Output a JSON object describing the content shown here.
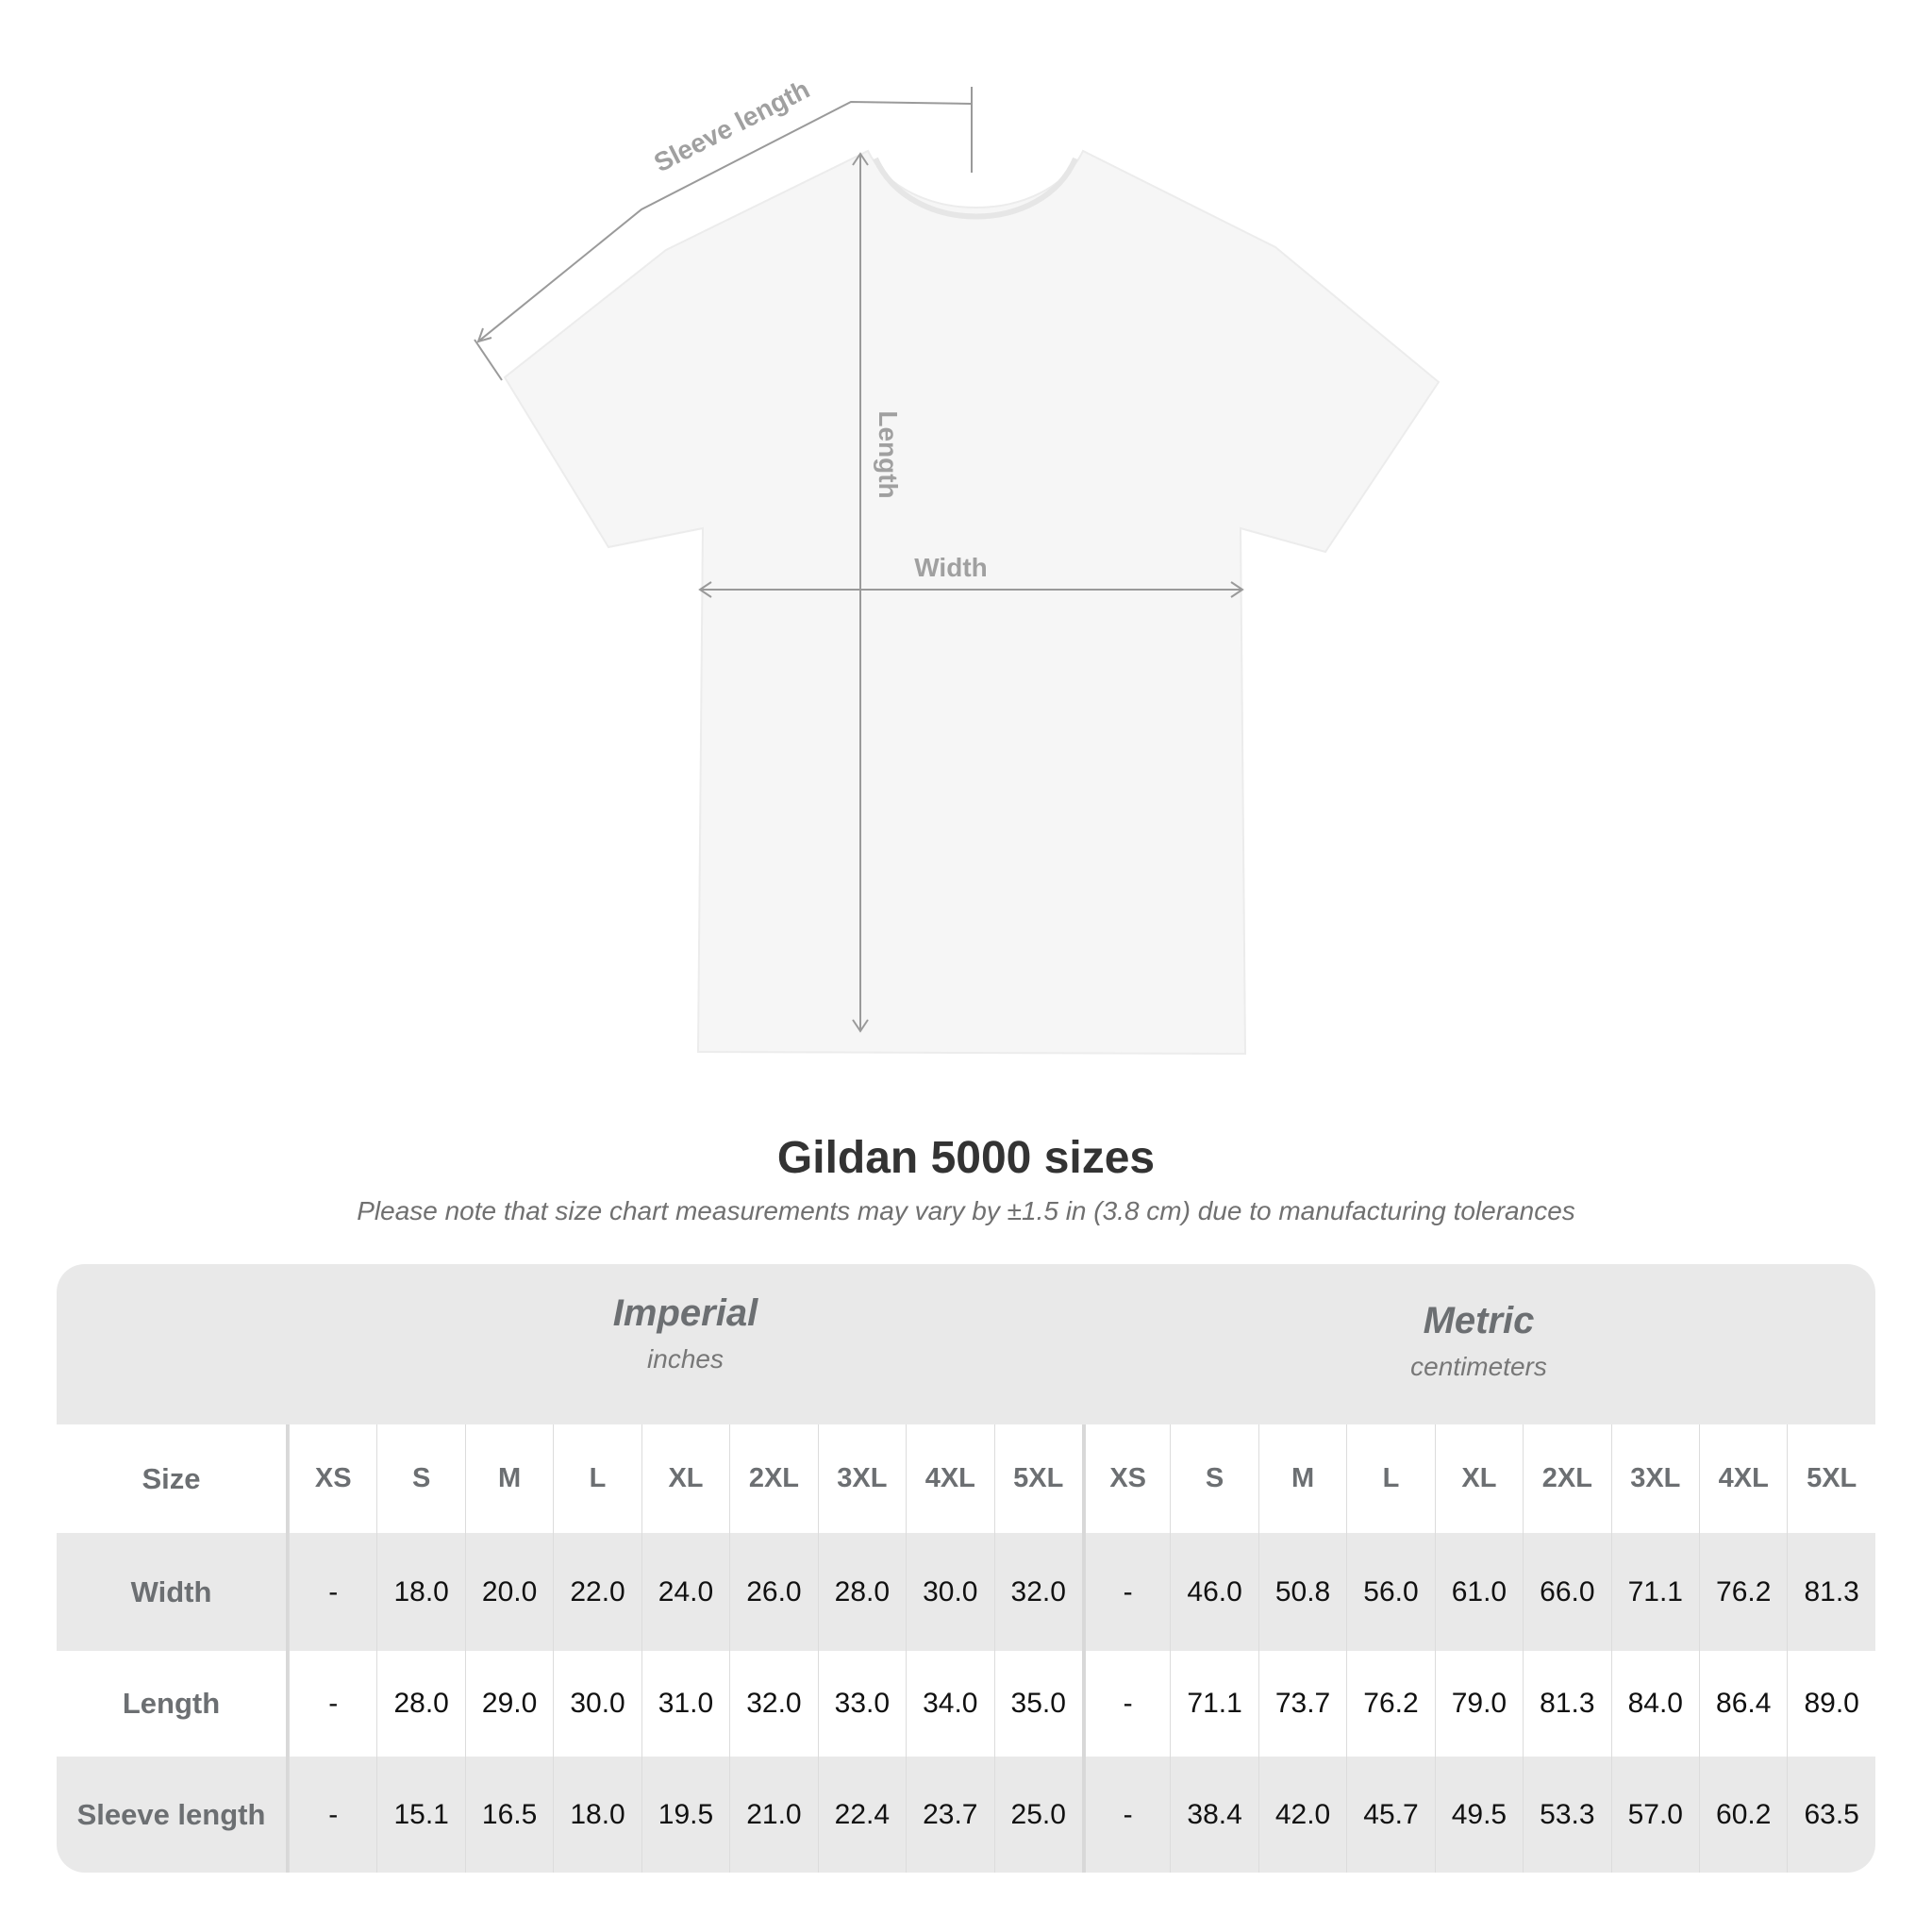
{
  "diagram": {
    "labels": {
      "sleeve": "Sleeve length",
      "length": "Length",
      "width": "Width"
    },
    "colors": {
      "shirt": "#f6f6f6",
      "lines": "#9a9a9a",
      "label": "#a0a0a0"
    }
  },
  "title": "Gildan 5000 sizes",
  "note": "Please note that size chart measurements may vary by ±1.5 in (3.8 cm) due to manufacturing tolerances",
  "table": {
    "imperial": {
      "name": "Imperial",
      "unit": "inches"
    },
    "metric": {
      "name": "Metric",
      "unit": "centimeters"
    },
    "size_label": "Size",
    "sizes": [
      "XS",
      "S",
      "M",
      "L",
      "XL",
      "2XL",
      "3XL",
      "4XL",
      "5XL"
    ],
    "rows": [
      {
        "label": "Width",
        "imperial": [
          "-",
          "18.0",
          "20.0",
          "22.0",
          "24.0",
          "26.0",
          "28.0",
          "30.0",
          "32.0"
        ],
        "metric": [
          "-",
          "46.0",
          "50.8",
          "56.0",
          "61.0",
          "66.0",
          "71.1",
          "76.2",
          "81.3"
        ]
      },
      {
        "label": "Length",
        "imperial": [
          "-",
          "28.0",
          "29.0",
          "30.0",
          "31.0",
          "32.0",
          "33.0",
          "34.0",
          "35.0"
        ],
        "metric": [
          "-",
          "71.1",
          "73.7",
          "76.2",
          "79.0",
          "81.3",
          "84.0",
          "86.4",
          "89.0"
        ]
      },
      {
        "label": "Sleeve length",
        "imperial": [
          "-",
          "15.1",
          "16.5",
          "18.0",
          "19.5",
          "21.0",
          "22.4",
          "23.7",
          "25.0"
        ],
        "metric": [
          "-",
          "38.4",
          "42.0",
          "45.7",
          "49.5",
          "53.3",
          "57.0",
          "60.2",
          "63.5"
        ]
      }
    ],
    "colors": {
      "band": "#e9e9e9",
      "header_text": "#6c6f72",
      "value_text": "#111111"
    }
  }
}
